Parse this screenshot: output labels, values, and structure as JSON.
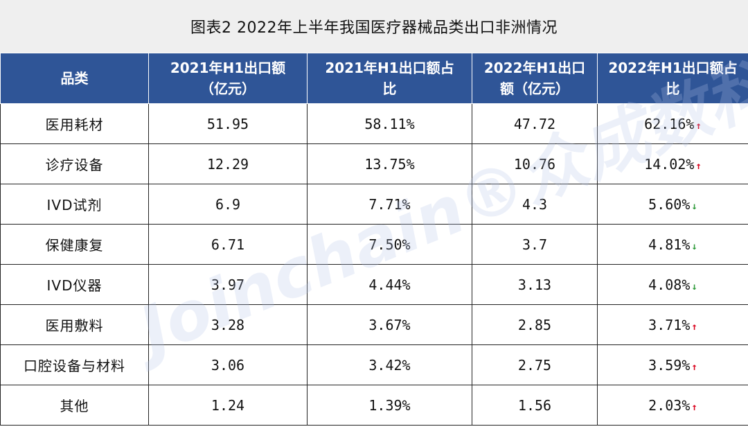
{
  "title": "图表2   2022年上半年我国医疗器械品类出口非洲情况",
  "headers": {
    "category": "品类",
    "col1_line1": "2021年H1出口额",
    "col1_line2": "（亿元）",
    "col2_line1": "2021年H1出口额占",
    "col2_line2": "比",
    "col3_line1": "2022年H1出口",
    "col3_line2": "额（亿元）",
    "col4_line1": "2022年H1出口额占",
    "col4_line2": "比"
  },
  "rows": [
    {
      "category": "医用耗材",
      "v2021": "51.95",
      "s2021": "58.11%",
      "v2022": "47.72",
      "s2022": "62.16%",
      "trend": "up",
      "arrow": "↑"
    },
    {
      "category": "诊疗设备",
      "v2021": "12.29",
      "s2021": "13.75%",
      "v2022": "10.76",
      "s2022": "14.02%",
      "trend": "up",
      "arrow": "↑"
    },
    {
      "category": "IVD试剂",
      "v2021": "6.9",
      "s2021": "7.71%",
      "v2022": "4.3",
      "s2022": "5.60%",
      "trend": "down",
      "arrow": "↓"
    },
    {
      "category": "保健康复",
      "v2021": "6.71",
      "s2021": "7.50%",
      "v2022": "3.7",
      "s2022": "4.81%",
      "trend": "down",
      "arrow": "↓"
    },
    {
      "category": "IVD仪器",
      "v2021": "3.97",
      "s2021": "4.44%",
      "v2022": "3.13",
      "s2022": "4.08%",
      "trend": "down",
      "arrow": "↓"
    },
    {
      "category": "医用敷料",
      "v2021": "3.28",
      "s2021": "3.67%",
      "v2022": "2.85",
      "s2022": "3.71%",
      "trend": "up",
      "arrow": "↑"
    },
    {
      "category": "口腔设备与材料",
      "v2021": "3.06",
      "s2021": "3.42%",
      "v2022": "2.75",
      "s2022": "3.59%",
      "trend": "up",
      "arrow": "↑"
    },
    {
      "category": "其他",
      "v2021": "1.24",
      "s2021": "1.39%",
      "v2022": "1.56",
      "s2022": "2.03%",
      "trend": "up",
      "arrow": "↑"
    }
  ],
  "watermark": "Joinchain®众成数科",
  "colors": {
    "header_bg": "#2f5597",
    "up": "#d9001b",
    "down": "#2e9a3a"
  }
}
